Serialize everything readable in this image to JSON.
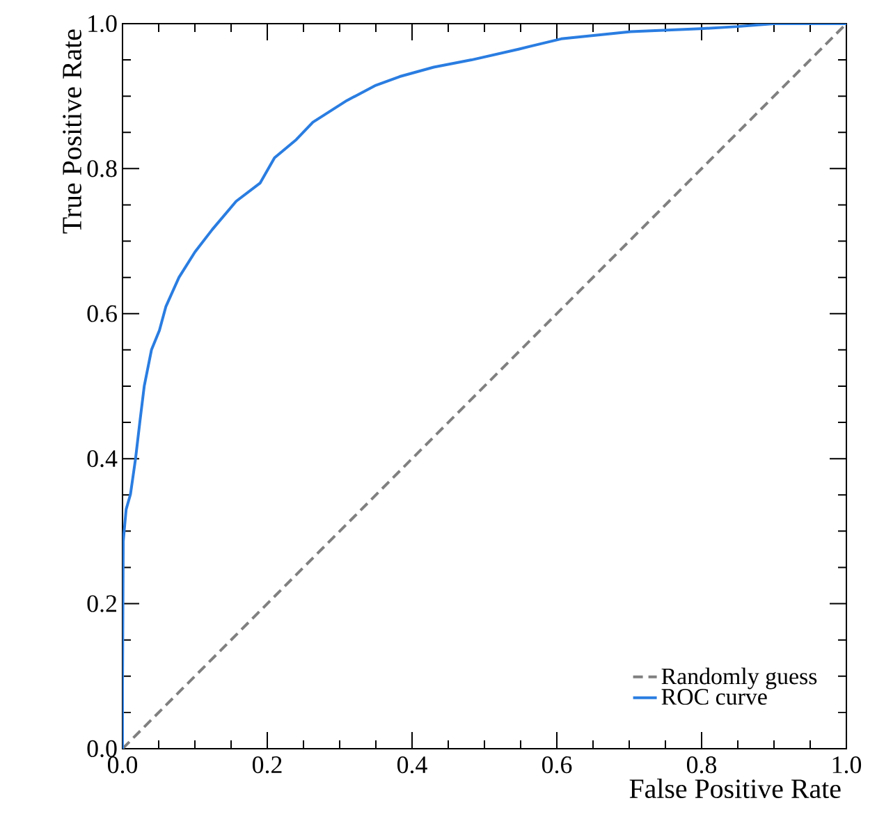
{
  "chart_data": {
    "type": "line",
    "xlabel": "False Positive Rate",
    "ylabel": "True Positive Rate",
    "xlim": [
      0.0,
      1.0
    ],
    "ylim": [
      0.0,
      1.0
    ],
    "xticks": [
      {
        "value": 0,
        "label": "0.0"
      },
      0.2,
      0.4,
      0.6,
      0.8,
      {
        "value": 1,
        "label": "1.0"
      }
    ],
    "yticks": [
      {
        "value": 0,
        "label": "0.0"
      },
      0.2,
      0.4,
      0.6,
      0.8,
      {
        "value": 1,
        "label": "1.0"
      }
    ],
    "legend": "bottom right",
    "series": [
      {
        "name": "Randomly guess",
        "color": "#808080",
        "line_style": "dashed",
        "x": [
          0,
          1
        ],
        "values": [
          0,
          1
        ]
      },
      {
        "name": "ROC curve",
        "color": "#2a7de1",
        "line_style": "solid",
        "x": [
          0,
          0.0,
          0.001,
          0.005,
          0.011,
          0.018,
          0.024,
          0.03,
          0.04,
          0.051,
          0.06,
          0.078,
          0.1,
          0.124,
          0.157,
          0.19,
          0.21,
          0.24,
          0.263,
          0.31,
          0.35,
          0.383,
          0.43,
          0.482,
          0.548,
          0.606,
          0.702,
          0.798,
          0.85,
          0.9,
          1.0
        ],
        "values": [
          0,
          0.087,
          0.286,
          0.33,
          0.351,
          0.4,
          0.451,
          0.5,
          0.55,
          0.577,
          0.61,
          0.65,
          0.685,
          0.716,
          0.755,
          0.78,
          0.815,
          0.84,
          0.864,
          0.894,
          0.915,
          0.927,
          0.94,
          0.95,
          0.965,
          0.979,
          0.989,
          0.993,
          0.996,
          1.0,
          1.0
        ]
      }
    ]
  }
}
